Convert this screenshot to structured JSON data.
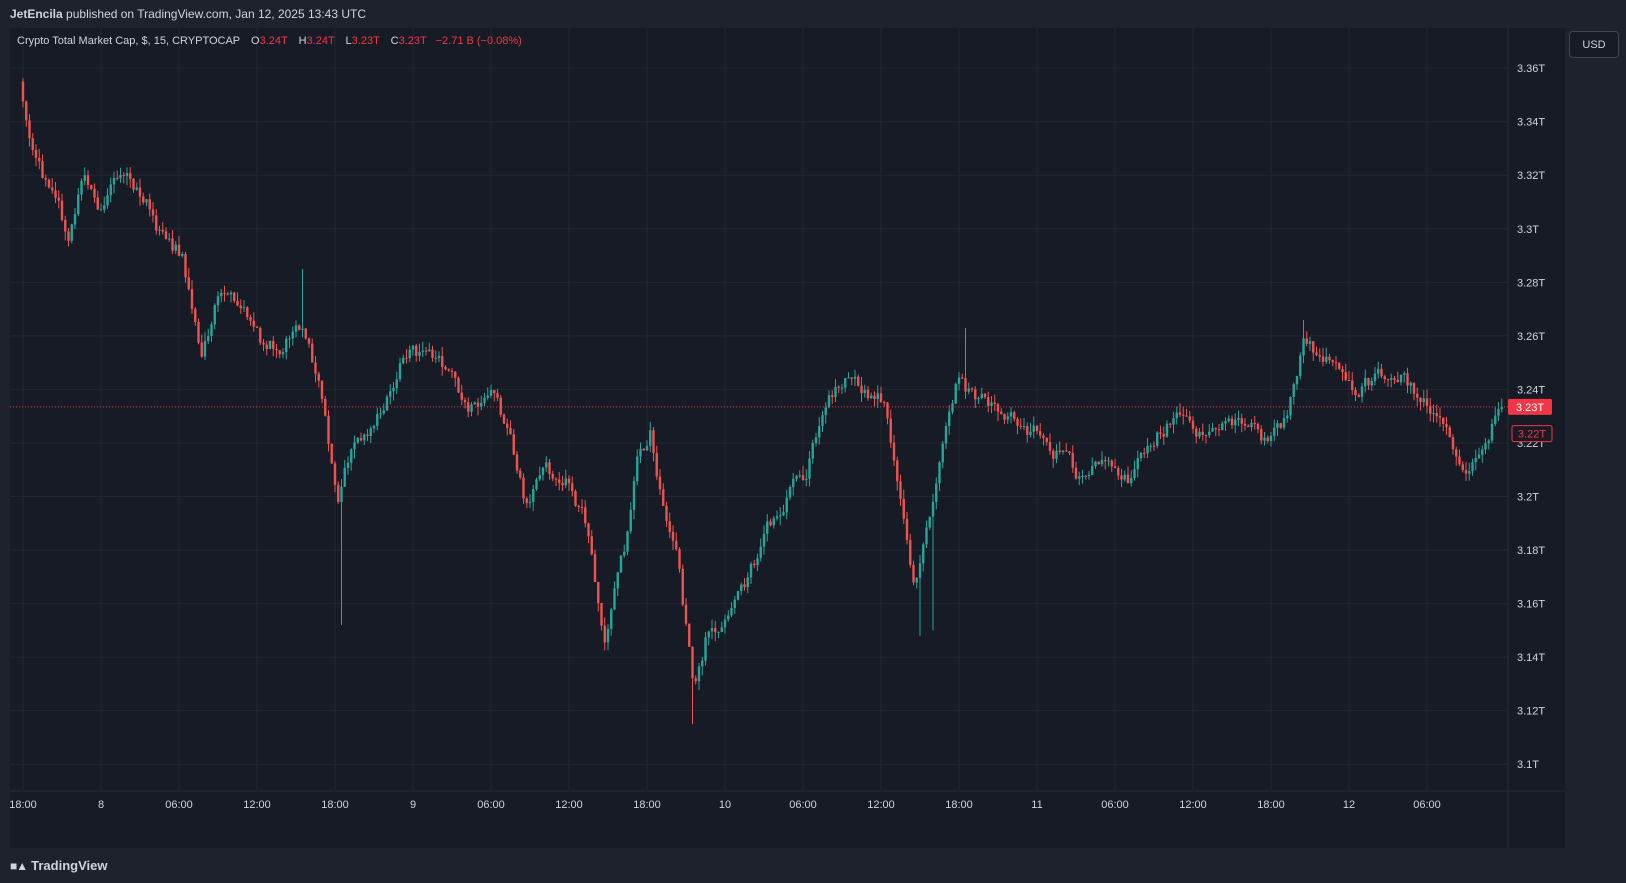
{
  "header": {
    "publisher": "JetEncila",
    "published_text": "published on TradingView.com, Jan 12, 2025 13:43 UTC"
  },
  "legend": {
    "symbol": "Crypto Total Market Cap, $, 15, CRYPTOCAP",
    "o_label": "O",
    "o_value": "3.24T",
    "h_label": "H",
    "h_value": "3.24T",
    "l_label": "L",
    "l_value": "3.23T",
    "c_label": "C",
    "c_value": "3.23T",
    "change": "−2.71 B (−0.08%)"
  },
  "currency_button": "USD",
  "footer": {
    "brand": "TradingView"
  },
  "colors": {
    "background": "#171b26",
    "grid": "#232733",
    "up": "#26a69a",
    "down": "#ef5350",
    "price_tag": "#f23645",
    "axis_text": "#d1d4dc"
  },
  "chart_data": {
    "type": "candlestick",
    "title": "Crypto Total Market Cap, $, 15, CRYPTOCAP",
    "ylim": [
      3.09,
      3.375
    ],
    "y_ticks": [
      {
        "value": 3.36,
        "label": "3.36T"
      },
      {
        "value": 3.34,
        "label": "3.34T"
      },
      {
        "value": 3.32,
        "label": "3.32T"
      },
      {
        "value": 3.3,
        "label": "3.3T"
      },
      {
        "value": 3.28,
        "label": "3.28T"
      },
      {
        "value": 3.26,
        "label": "3.26T"
      },
      {
        "value": 3.24,
        "label": "3.24T"
      },
      {
        "value": 3.22,
        "label": "3.22T"
      },
      {
        "value": 3.2,
        "label": "3.2T"
      },
      {
        "value": 3.18,
        "label": "3.18T"
      },
      {
        "value": 3.16,
        "label": "3.16T"
      },
      {
        "value": 3.14,
        "label": "3.14T"
      },
      {
        "value": 3.12,
        "label": "3.12T"
      },
      {
        "value": 3.1,
        "label": "3.1T"
      }
    ],
    "x_ticks": [
      {
        "hour": 0,
        "label": "18:00"
      },
      {
        "hour": 6,
        "label": "8"
      },
      {
        "hour": 12,
        "label": "06:00"
      },
      {
        "hour": 18,
        "label": "12:00"
      },
      {
        "hour": 24,
        "label": "18:00"
      },
      {
        "hour": 30,
        "label": "9"
      },
      {
        "hour": 36,
        "label": "06:00"
      },
      {
        "hour": 42,
        "label": "12:00"
      },
      {
        "hour": 48,
        "label": "18:00"
      },
      {
        "hour": 54,
        "label": "10"
      },
      {
        "hour": 60,
        "label": "06:00"
      },
      {
        "hour": 66,
        "label": "12:00"
      },
      {
        "hour": 72,
        "label": "18:00"
      },
      {
        "hour": 78,
        "label": "11"
      },
      {
        "hour": 84,
        "label": "06:00"
      },
      {
        "hour": 90,
        "label": "12:00"
      },
      {
        "hour": 96,
        "label": "18:00"
      },
      {
        "hour": 102,
        "label": "12"
      },
      {
        "hour": 108,
        "label": "06:00"
      }
    ],
    "x_range_hours": [
      0,
      113.8
    ],
    "current_price": {
      "value": 3.2335,
      "label": "3.23T"
    },
    "secondary_price": {
      "value": 3.2235,
      "label": "3.22T"
    },
    "anchors": [
      [
        0,
        3.355
      ],
      [
        1.3,
        3.325
      ],
      [
        2.5,
        3.312
      ],
      [
        3.8,
        3.298
      ],
      [
        4.8,
        3.318
      ],
      [
        6.3,
        3.308
      ],
      [
        7.6,
        3.322
      ],
      [
        9.6,
        3.31
      ],
      [
        11,
        3.296
      ],
      [
        12.5,
        3.29
      ],
      [
        14,
        3.252
      ],
      [
        15.5,
        3.278
      ],
      [
        17,
        3.275
      ],
      [
        18.5,
        3.258
      ],
      [
        20,
        3.258
      ],
      [
        21.8,
        3.262
      ],
      [
        23.3,
        3.235
      ],
      [
        24.5,
        3.2
      ],
      [
        25.5,
        3.22
      ],
      [
        27,
        3.225
      ],
      [
        28.5,
        3.24
      ],
      [
        30,
        3.255
      ],
      [
        31.8,
        3.252
      ],
      [
        33,
        3.248
      ],
      [
        34.5,
        3.232
      ],
      [
        36.3,
        3.237
      ],
      [
        37.5,
        3.225
      ],
      [
        39,
        3.195
      ],
      [
        40.5,
        3.212
      ],
      [
        42,
        3.205
      ],
      [
        43.5,
        3.19
      ],
      [
        45,
        3.145
      ],
      [
        46.5,
        3.18
      ],
      [
        47.5,
        3.215
      ],
      [
        48.5,
        3.225
      ],
      [
        49.5,
        3.198
      ],
      [
        50.5,
        3.178
      ],
      [
        51.8,
        3.13
      ],
      [
        52.8,
        3.148
      ],
      [
        54,
        3.15
      ],
      [
        55.5,
        3.163
      ],
      [
        57,
        3.182
      ],
      [
        58.5,
        3.197
      ],
      [
        60.5,
        3.21
      ],
      [
        62.2,
        3.24
      ],
      [
        64.5,
        3.243
      ],
      [
        66.5,
        3.235
      ],
      [
        67.8,
        3.195
      ],
      [
        68.8,
        3.162
      ],
      [
        70,
        3.192
      ],
      [
        71.5,
        3.235
      ],
      [
        72.3,
        3.245
      ],
      [
        73.5,
        3.236
      ],
      [
        75.5,
        3.23
      ],
      [
        77.5,
        3.226
      ],
      [
        79.5,
        3.218
      ],
      [
        81.5,
        3.207
      ],
      [
        83.5,
        3.217
      ],
      [
        85.5,
        3.207
      ],
      [
        87.5,
        3.222
      ],
      [
        89.5,
        3.233
      ],
      [
        91.5,
        3.222
      ],
      [
        93.5,
        3.227
      ],
      [
        95.5,
        3.222
      ],
      [
        97.5,
        3.227
      ],
      [
        98.8,
        3.26
      ],
      [
        100.3,
        3.252
      ],
      [
        102.3,
        3.238
      ],
      [
        104.3,
        3.245
      ],
      [
        106.3,
        3.243
      ],
      [
        108.3,
        3.233
      ],
      [
        110,
        3.222
      ],
      [
        111.2,
        3.21
      ],
      [
        112.5,
        3.22
      ],
      [
        113.8,
        3.233
      ]
    ],
    "spikes": [
      {
        "hour": 24.5,
        "low": 3.152
      },
      {
        "hour": 51.5,
        "low": 3.115
      },
      {
        "hour": 68.9,
        "low": 3.148
      },
      {
        "hour": 72.4,
        "high": 3.263
      },
      {
        "hour": 98.5,
        "high": 3.266
      },
      {
        "hour": 21.6,
        "high": 3.285
      },
      {
        "hour": 70.1,
        "low": 3.15
      }
    ]
  }
}
